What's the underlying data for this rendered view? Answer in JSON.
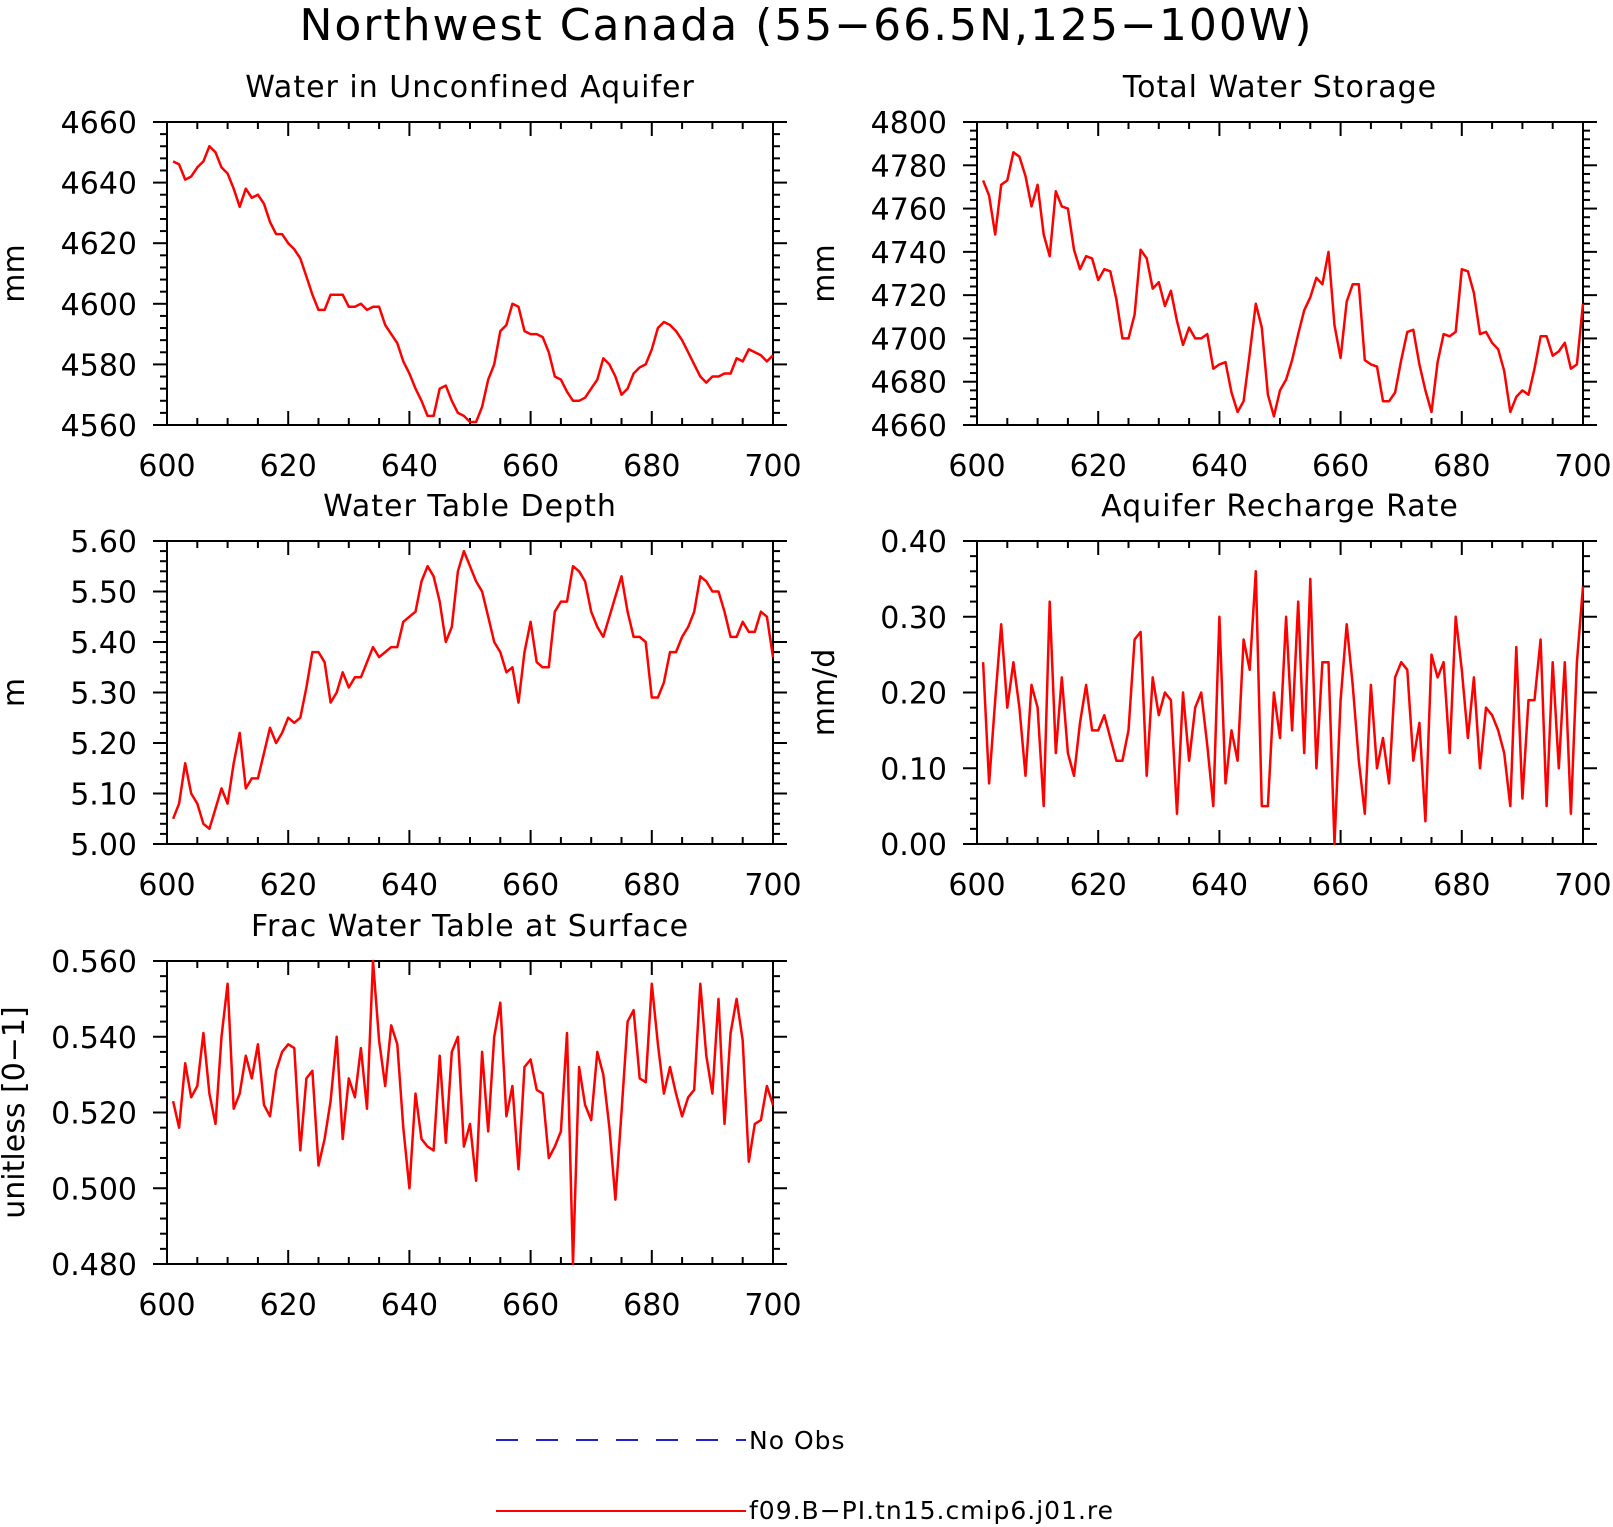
{
  "figure": {
    "title": "Northwest Canada (55−66.5N,125−100W)",
    "line_color": "#ff0000",
    "obs_color": "#2222cc"
  },
  "legend": {
    "items": [
      {
        "label": "No Obs",
        "color": "#2222cc",
        "style": "dashed"
      },
      {
        "label": "f09.B−PI.tn15.cmip6.j01.re",
        "color": "#ff0000",
        "style": "solid"
      }
    ]
  },
  "chart_data": [
    {
      "type": "line",
      "title": "Water in Unconfined Aquifer",
      "ylabel": "mm",
      "xlim": [
        600,
        700
      ],
      "ylim": [
        4560,
        4660
      ],
      "xticks": [
        600,
        620,
        640,
        660,
        680,
        700
      ],
      "yticks": [
        "4560",
        "4580",
        "4600",
        "4620",
        "4640",
        "4660"
      ],
      "x": [
        601,
        602,
        603,
        604,
        605,
        606,
        607,
        608,
        609,
        610,
        611,
        612,
        613,
        614,
        615,
        616,
        617,
        618,
        619,
        620,
        621,
        622,
        623,
        624,
        625,
        626,
        627,
        628,
        629,
        630,
        631,
        632,
        633,
        634,
        635,
        636,
        637,
        638,
        639,
        640,
        641,
        642,
        643,
        644,
        645,
        646,
        647,
        648,
        649,
        650,
        651,
        652,
        653,
        654,
        655,
        656,
        657,
        658,
        659,
        660,
        661,
        662,
        663,
        664,
        665,
        666,
        667,
        668,
        669,
        670,
        671,
        672,
        673,
        674,
        675,
        676,
        677,
        678,
        679,
        680,
        681,
        682,
        683,
        684,
        685,
        686,
        687,
        688,
        689,
        690,
        691,
        692,
        693,
        694,
        695,
        696,
        697,
        698,
        699,
        700
      ],
      "series": [
        {
          "values": [
            4647,
            4646,
            4641,
            4642,
            4645,
            4647,
            4652,
            4650,
            4645,
            4643,
            4638,
            4632,
            4638,
            4635,
            4636,
            4633,
            4627,
            4623,
            4623,
            4620,
            4618,
            4615,
            4609,
            4603,
            4598,
            4598,
            4603,
            4603,
            4603,
            4599,
            4599,
            4600,
            4598,
            4599,
            4599,
            4593,
            4590,
            4587,
            4581,
            4577,
            4572,
            4568,
            4563,
            4563,
            4572,
            4573,
            4568,
            4564,
            4563,
            4561,
            4561,
            4566,
            4575,
            4580,
            4591,
            4593,
            4600,
            4599,
            4591,
            4590,
            4590,
            4589,
            4584,
            4576,
            4575,
            4571,
            4568,
            4568,
            4569,
            4572,
            4575,
            4582,
            4580,
            4576,
            4570,
            4572,
            4577,
            4579,
            4580,
            4585,
            4592,
            4594,
            4593,
            4591,
            4588,
            4584,
            4580,
            4576,
            4574,
            4576,
            4576,
            4577,
            4577,
            4582,
            4581,
            4585,
            4584,
            4583,
            4581,
            4583
          ]
        }
      ]
    },
    {
      "type": "line",
      "title": "Total Water Storage",
      "ylabel": "mm",
      "xlim": [
        600,
        700
      ],
      "ylim": [
        4660,
        4800
      ],
      "xticks": [
        600,
        620,
        640,
        660,
        680,
        700
      ],
      "yticks": [
        "4660",
        "4680",
        "4700",
        "4720",
        "4740",
        "4760",
        "4780",
        "4800"
      ],
      "x": [
        601,
        602,
        603,
        604,
        605,
        606,
        607,
        608,
        609,
        610,
        611,
        612,
        613,
        614,
        615,
        616,
        617,
        618,
        619,
        620,
        621,
        622,
        623,
        624,
        625,
        626,
        627,
        628,
        629,
        630,
        631,
        632,
        633,
        634,
        635,
        636,
        637,
        638,
        639,
        640,
        641,
        642,
        643,
        644,
        645,
        646,
        647,
        648,
        649,
        650,
        651,
        652,
        653,
        654,
        655,
        656,
        657,
        658,
        659,
        660,
        661,
        662,
        663,
        664,
        665,
        666,
        667,
        668,
        669,
        670,
        671,
        672,
        673,
        674,
        675,
        676,
        677,
        678,
        679,
        680,
        681,
        682,
        683,
        684,
        685,
        686,
        687,
        688,
        689,
        690,
        691,
        692,
        693,
        694,
        695,
        696,
        697,
        698,
        699,
        700
      ],
      "series": [
        {
          "values": [
            4773,
            4766,
            4748,
            4771,
            4773,
            4786,
            4784,
            4775,
            4761,
            4771,
            4748,
            4738,
            4768,
            4761,
            4760,
            4741,
            4732,
            4738,
            4737,
            4727,
            4732,
            4731,
            4718,
            4700,
            4700,
            4711,
            4741,
            4737,
            4723,
            4726,
            4715,
            4722,
            4708,
            4697,
            4705,
            4700,
            4700,
            4702,
            4686,
            4688,
            4689,
            4675,
            4666,
            4671,
            4693,
            4716,
            4705,
            4674,
            4664,
            4676,
            4681,
            4690,
            4702,
            4713,
            4719,
            4728,
            4725,
            4740,
            4706,
            4691,
            4717,
            4725,
            4725,
            4690,
            4688,
            4687,
            4671,
            4671,
            4675,
            4690,
            4703,
            4704,
            4688,
            4676,
            4666,
            4689,
            4702,
            4701,
            4703,
            4732,
            4731,
            4721,
            4702,
            4703,
            4698,
            4695,
            4685,
            4666,
            4673,
            4676,
            4674,
            4686,
            4701,
            4701,
            4692,
            4694,
            4698,
            4686,
            4688,
            4716
          ]
        }
      ]
    },
    {
      "type": "line",
      "title": "Water Table Depth",
      "ylabel": "m",
      "xlim": [
        600,
        700
      ],
      "ylim": [
        5.0,
        5.6
      ],
      "xticks": [
        600,
        620,
        640,
        660,
        680,
        700
      ],
      "yticks": [
        "5.00",
        "5.10",
        "5.20",
        "5.30",
        "5.40",
        "5.50",
        "5.60"
      ],
      "x": [
        601,
        602,
        603,
        604,
        605,
        606,
        607,
        608,
        609,
        610,
        611,
        612,
        613,
        614,
        615,
        616,
        617,
        618,
        619,
        620,
        621,
        622,
        623,
        624,
        625,
        626,
        627,
        628,
        629,
        630,
        631,
        632,
        633,
        634,
        635,
        636,
        637,
        638,
        639,
        640,
        641,
        642,
        643,
        644,
        645,
        646,
        647,
        648,
        649,
        650,
        651,
        652,
        653,
        654,
        655,
        656,
        657,
        658,
        659,
        660,
        661,
        662,
        663,
        664,
        665,
        666,
        667,
        668,
        669,
        670,
        671,
        672,
        673,
        674,
        675,
        676,
        677,
        678,
        679,
        680,
        681,
        682,
        683,
        684,
        685,
        686,
        687,
        688,
        689,
        690,
        691,
        692,
        693,
        694,
        695,
        696,
        697,
        698,
        699,
        700
      ],
      "series": [
        {
          "values": [
            5.05,
            5.08,
            5.16,
            5.1,
            5.08,
            5.04,
            5.03,
            5.07,
            5.11,
            5.08,
            5.16,
            5.22,
            5.11,
            5.13,
            5.13,
            5.18,
            5.23,
            5.2,
            5.22,
            5.25,
            5.24,
            5.25,
            5.31,
            5.38,
            5.38,
            5.36,
            5.28,
            5.3,
            5.34,
            5.31,
            5.33,
            5.33,
            5.36,
            5.39,
            5.37,
            5.38,
            5.39,
            5.39,
            5.44,
            5.45,
            5.46,
            5.52,
            5.55,
            5.53,
            5.48,
            5.4,
            5.43,
            5.54,
            5.58,
            5.55,
            5.52,
            5.5,
            5.45,
            5.4,
            5.38,
            5.34,
            5.35,
            5.28,
            5.38,
            5.44,
            5.36,
            5.35,
            5.35,
            5.46,
            5.48,
            5.48,
            5.55,
            5.54,
            5.52,
            5.46,
            5.43,
            5.41,
            5.45,
            5.49,
            5.53,
            5.46,
            5.41,
            5.41,
            5.4,
            5.29,
            5.29,
            5.32,
            5.38,
            5.38,
            5.41,
            5.43,
            5.46,
            5.53,
            5.52,
            5.5,
            5.5,
            5.46,
            5.41,
            5.41,
            5.44,
            5.42,
            5.42,
            5.46,
            5.45,
            5.37
          ]
        }
      ]
    },
    {
      "type": "line",
      "title": "Aquifer Recharge Rate",
      "ylabel": "mm/d",
      "xlim": [
        600,
        700
      ],
      "ylim": [
        0.0,
        0.4
      ],
      "xticks": [
        600,
        620,
        640,
        660,
        680,
        700
      ],
      "yticks": [
        "0.00",
        "0.10",
        "0.20",
        "0.30",
        "0.40"
      ],
      "x": [
        601,
        602,
        603,
        604,
        605,
        606,
        607,
        608,
        609,
        610,
        611,
        612,
        613,
        614,
        615,
        616,
        617,
        618,
        619,
        620,
        621,
        622,
        623,
        624,
        625,
        626,
        627,
        628,
        629,
        630,
        631,
        632,
        633,
        634,
        635,
        636,
        637,
        638,
        639,
        640,
        641,
        642,
        643,
        644,
        645,
        646,
        647,
        648,
        649,
        650,
        651,
        652,
        653,
        654,
        655,
        656,
        657,
        658,
        659,
        660,
        661,
        662,
        663,
        664,
        665,
        666,
        667,
        668,
        669,
        670,
        671,
        672,
        673,
        674,
        675,
        676,
        677,
        678,
        679,
        680,
        681,
        682,
        683,
        684,
        685,
        686,
        687,
        688,
        689,
        690,
        691,
        692,
        693,
        694,
        695,
        696,
        697,
        698,
        699,
        700
      ],
      "series": [
        {
          "values": [
            0.24,
            0.08,
            0.19,
            0.29,
            0.18,
            0.24,
            0.18,
            0.09,
            0.21,
            0.18,
            0.05,
            0.32,
            0.12,
            0.22,
            0.12,
            0.09,
            0.16,
            0.21,
            0.15,
            0.15,
            0.17,
            0.14,
            0.11,
            0.11,
            0.15,
            0.27,
            0.28,
            0.09,
            0.22,
            0.17,
            0.2,
            0.19,
            0.04,
            0.2,
            0.11,
            0.18,
            0.2,
            0.13,
            0.05,
            0.3,
            0.08,
            0.15,
            0.11,
            0.27,
            0.23,
            0.36,
            0.05,
            0.05,
            0.2,
            0.14,
            0.3,
            0.15,
            0.32,
            0.12,
            0.35,
            0.1,
            0.24,
            0.24,
            0.0,
            0.19,
            0.29,
            0.21,
            0.11,
            0.04,
            0.21,
            0.1,
            0.14,
            0.08,
            0.22,
            0.24,
            0.23,
            0.11,
            0.16,
            0.03,
            0.25,
            0.22,
            0.24,
            0.12,
            0.3,
            0.23,
            0.14,
            0.22,
            0.1,
            0.18,
            0.17,
            0.15,
            0.12,
            0.05,
            0.26,
            0.06,
            0.19,
            0.19,
            0.27,
            0.05,
            0.24,
            0.1,
            0.24,
            0.04,
            0.24,
            0.34
          ]
        }
      ]
    },
    {
      "type": "line",
      "title": "Frac Water Table at Surface",
      "ylabel": "unitless [0−1]",
      "xlim": [
        600,
        700
      ],
      "ylim": [
        0.48,
        0.56
      ],
      "xticks": [
        600,
        620,
        640,
        660,
        680,
        700
      ],
      "yticks": [
        "0.480",
        "0.500",
        "0.520",
        "0.540",
        "0.560"
      ],
      "x": [
        601,
        602,
        603,
        604,
        605,
        606,
        607,
        608,
        609,
        610,
        611,
        612,
        613,
        614,
        615,
        616,
        617,
        618,
        619,
        620,
        621,
        622,
        623,
        624,
        625,
        626,
        627,
        628,
        629,
        630,
        631,
        632,
        633,
        634,
        635,
        636,
        637,
        638,
        639,
        640,
        641,
        642,
        643,
        644,
        645,
        646,
        647,
        648,
        649,
        650,
        651,
        652,
        653,
        654,
        655,
        656,
        657,
        658,
        659,
        660,
        661,
        662,
        663,
        664,
        665,
        666,
        667,
        668,
        669,
        670,
        671,
        672,
        673,
        674,
        675,
        676,
        677,
        678,
        679,
        680,
        681,
        682,
        683,
        684,
        685,
        686,
        687,
        688,
        689,
        690,
        691,
        692,
        693,
        694,
        695,
        696,
        697,
        698,
        699,
        700
      ],
      "series": [
        {
          "values": [
            0.523,
            0.516,
            0.533,
            0.524,
            0.527,
            0.541,
            0.525,
            0.517,
            0.54,
            0.554,
            0.521,
            0.525,
            0.535,
            0.529,
            0.538,
            0.522,
            0.519,
            0.531,
            0.536,
            0.538,
            0.537,
            0.51,
            0.529,
            0.531,
            0.506,
            0.513,
            0.523,
            0.54,
            0.513,
            0.529,
            0.524,
            0.537,
            0.521,
            0.56,
            0.539,
            0.527,
            0.543,
            0.538,
            0.516,
            0.5,
            0.525,
            0.513,
            0.511,
            0.51,
            0.535,
            0.512,
            0.536,
            0.54,
            0.511,
            0.517,
            0.502,
            0.536,
            0.515,
            0.54,
            0.549,
            0.519,
            0.527,
            0.505,
            0.532,
            0.534,
            0.526,
            0.525,
            0.508,
            0.511,
            0.515,
            0.541,
            0.48,
            0.532,
            0.522,
            0.518,
            0.536,
            0.53,
            0.516,
            0.497,
            0.52,
            0.544,
            0.547,
            0.529,
            0.528,
            0.554,
            0.538,
            0.525,
            0.532,
            0.525,
            0.519,
            0.524,
            0.526,
            0.554,
            0.535,
            0.525,
            0.55,
            0.517,
            0.541,
            0.55,
            0.539,
            0.507,
            0.517,
            0.518,
            0.527,
            0.522
          ]
        }
      ]
    }
  ]
}
